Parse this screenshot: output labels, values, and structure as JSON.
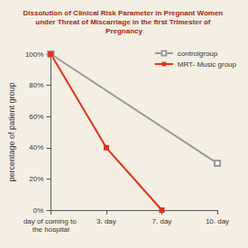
{
  "chart_data": {
    "type": "line",
    "title": "Dissolution of Clinical Risk Parameter in Pregnant Women under Threat of Miscarriage in the first Trimester of Pregnancy",
    "ylabel": "percentage of patient group",
    "categories": [
      "day of coming to the hospital",
      "3. day",
      "7. day",
      "10. day"
    ],
    "series": [
      {
        "name": "controlgroup",
        "color": "#9a9a9a",
        "marker": "open_square",
        "values": [
          100,
          null,
          null,
          30
        ]
      },
      {
        "name": "MRT- Music group",
        "color": "#e3301c",
        "marker": "square",
        "values": [
          100,
          40,
          0,
          null
        ]
      }
    ],
    "ylim": [
      0,
      100
    ],
    "yticks": [
      {
        "value": 0,
        "label": "0%"
      },
      {
        "value": 20,
        "label": "20%"
      },
      {
        "value": 40,
        "label": "40%"
      },
      {
        "value": 60,
        "label": "60%"
      },
      {
        "value": 80,
        "label": "80%"
      },
      {
        "value": 100,
        "label": "100%"
      }
    ],
    "grid": false,
    "legend": "top-right"
  }
}
